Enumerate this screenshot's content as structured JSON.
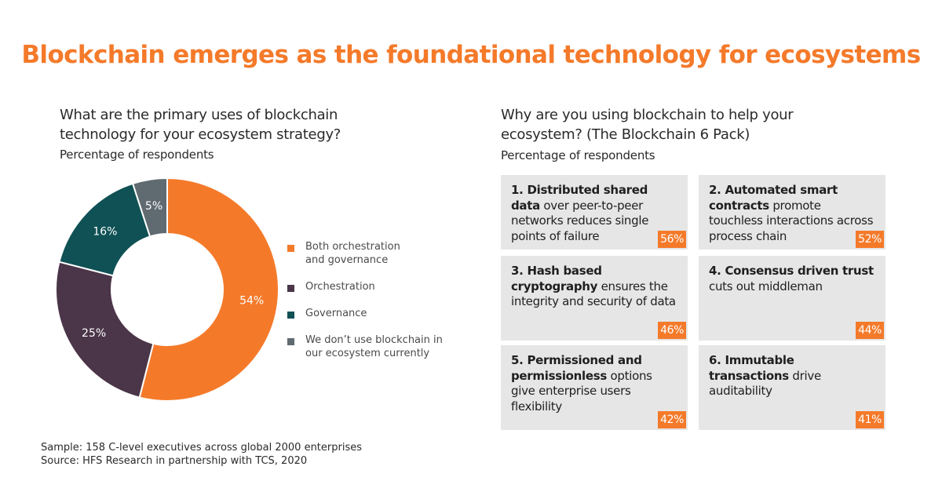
{
  "title": "Blockchain emerges as the foundational technology for ecosystems",
  "left": {
    "question_line1": "What are the primary uses of blockchain",
    "question_line2": "technology for your ecosystem strategy?",
    "subtitle": "Percentage of respondents"
  },
  "right": {
    "question_line1": "Why are you using blockchain to help your",
    "question_line2": "ecosystem? (The Blockchain 6 Pack)",
    "subtitle": "Percentage of respondents",
    "cards": [
      {
        "bold": "1. Distributed shared data",
        "rest": " over peer-to-peer networks reduces single points of failure",
        "percent": "56%"
      },
      {
        "bold": "2. Automated smart contracts",
        "rest": " promote touchless interactions across process chain",
        "percent": "52%"
      },
      {
        "bold": "3. Hash based cryptography",
        "rest": " ensures the integrity and security of data",
        "percent": "46%"
      },
      {
        "bold": "4. Consensus driven trust",
        "rest": " cuts out middleman",
        "percent": "44%"
      },
      {
        "bold": "5. Permissioned and permissionless",
        "rest": " options give enterprise users flexibility",
        "percent": "42%"
      },
      {
        "bold": "6. Immutable transactions",
        "rest": " drive auditability",
        "percent": "41%"
      }
    ]
  },
  "chart_data": {
    "type": "pie",
    "donut": true,
    "categories": [
      "Both orchestration and governance",
      "Orchestration",
      "Governance",
      "We don’t use blockchain in our ecosystem currently"
    ],
    "legend_lines": [
      [
        "Both orchestration",
        "and governance"
      ],
      [
        "Orchestration"
      ],
      [
        "Governance"
      ],
      [
        "We don’t use blockchain in",
        "our ecosystem currently"
      ]
    ],
    "values": [
      54,
      25,
      16,
      5
    ],
    "labels": [
      "54%",
      "25%",
      "16%",
      "5%"
    ],
    "colors": [
      "#f47a2a",
      "#4b3548",
      "#0f5155",
      "#5f6a71"
    ],
    "legend_position": "right"
  },
  "footer": {
    "sample": "Sample: 158 C-level executives across global 2000 enterprises",
    "source": "Source: HFS Research in partnership with TCS, 2020"
  }
}
